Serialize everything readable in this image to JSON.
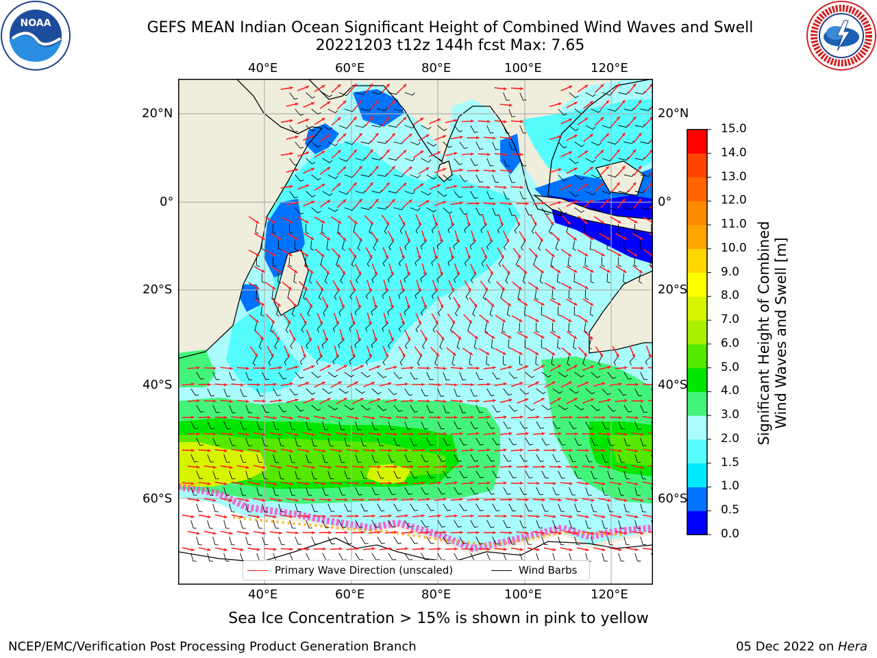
{
  "header": {
    "title_line1": "GEFS MEAN Indian Ocean Significant Height of Combined Wind Waves and Swell",
    "title_line2": "20221203 t12z 144h fcst   Max: 7.65"
  },
  "logos": {
    "left": {
      "text": "NOAA",
      "ring_text": "NATIONAL OCEANIC AND ATMOSPHERIC ADMINISTRATION · U.S. DEPARTMENT OF COMMERCE"
    },
    "right": {
      "ring_text": "NATIONAL WEATHER SERVICE"
    }
  },
  "map": {
    "lon_labels": [
      "40°E",
      "60°E",
      "80°E",
      "100°E",
      "120°E"
    ],
    "lat_labels": [
      "20°N",
      "0°",
      "20°S",
      "40°S",
      "60°S"
    ],
    "legend": {
      "wave_label": "Primary Wave Direction (unscaled)",
      "wave_color": "#ff2020",
      "wind_label": "Wind Barbs",
      "wind_color": "#000000"
    },
    "colors": {
      "land": "#efeedd",
      "grid": "#b0b0b0",
      "ice": "#ff44cc"
    }
  },
  "colorbar": {
    "title_line1": "Significant Height of Combined",
    "title_line2": "Wind Waves and Swell [m]",
    "ticks": [
      "15.0",
      "14.0",
      "13.0",
      "12.0",
      "11.0",
      "10.0",
      "9.0",
      "8.0",
      "7.0",
      "6.0",
      "5.0",
      "4.0",
      "3.0",
      "2.0",
      "1.5",
      "1.0",
      "0.5",
      "0.0"
    ],
    "colors": [
      "#0000ff",
      "#0073ff",
      "#00eaff",
      "#55fdfd",
      "#aafcfc",
      "#44f47a",
      "#00e600",
      "#55e800",
      "#aaf000",
      "#d6f400",
      "#ffff00",
      "#ffd700",
      "#ffa500",
      "#ff8c00",
      "#ff6400",
      "#ff4400",
      "#ff0000"
    ]
  },
  "footer": {
    "subtitle": "Sea Ice Concentration > 15% is shown in pink to yellow",
    "credit": "NCEP/EMC/Verification Post Processing Product Generation Branch",
    "date_prefix": "05 Dec 2022 on ",
    "date_host": "Hera"
  }
}
